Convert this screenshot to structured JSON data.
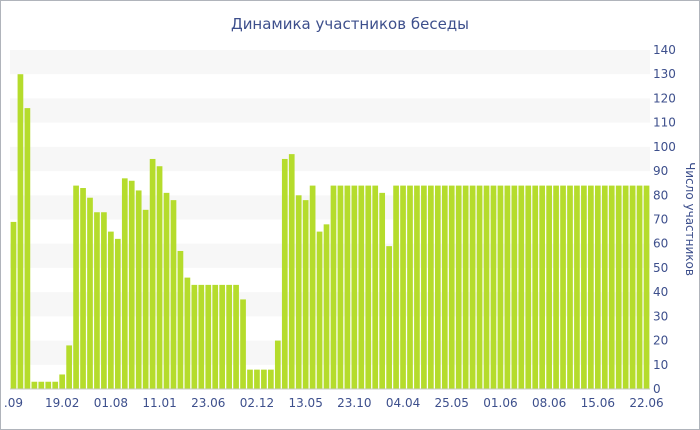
{
  "chart_data": {
    "type": "bar",
    "title": "Динамика участников беседы",
    "xlabel": "",
    "ylabel": "Число участников",
    "ylim": [
      0,
      140
    ],
    "y_ticks": [
      0,
      10,
      20,
      30,
      40,
      50,
      60,
      70,
      80,
      90,
      100,
      110,
      120,
      130,
      140
    ],
    "y_axis_side": "right",
    "grid": "horizontal alternating bands",
    "legend": "none",
    "bar_color": "#b5dc2c",
    "band_color": "#f7f7f7",
    "text_color": "#3d4f8c",
    "x_tick_labels": [
      {
        "label": ".09",
        "index": 0
      },
      {
        "label": "19.02",
        "index": 7
      },
      {
        "label": "01.08",
        "index": 14
      },
      {
        "label": "11.01",
        "index": 21
      },
      {
        "label": "23.06",
        "index": 28
      },
      {
        "label": "02.12",
        "index": 35
      },
      {
        "label": "13.05",
        "index": 42
      },
      {
        "label": "23.10",
        "index": 49
      },
      {
        "label": "04.04",
        "index": 56
      },
      {
        "label": "25.05",
        "index": 63
      },
      {
        "label": "01.06",
        "index": 70
      },
      {
        "label": "08.06",
        "index": 77
      },
      {
        "label": "15.06",
        "index": 84
      },
      {
        "label": "22.06",
        "index": 91
      }
    ],
    "values": [
      69,
      130,
      116,
      3,
      3,
      3,
      3,
      6,
      18,
      84,
      83,
      79,
      73,
      73,
      65,
      62,
      87,
      86,
      82,
      74,
      95,
      92,
      81,
      78,
      57,
      46,
      43,
      43,
      43,
      43,
      43,
      43,
      43,
      37,
      8,
      8,
      8,
      8,
      20,
      95,
      97,
      80,
      78,
      84,
      65,
      68,
      84,
      84,
      84,
      84,
      84,
      84,
      84,
      81,
      59,
      84,
      84,
      84,
      84,
      84,
      84,
      84,
      84,
      84,
      84,
      84,
      84,
      84,
      84,
      84,
      84,
      84,
      84,
      84,
      84,
      84,
      84,
      84,
      84,
      84,
      84,
      84,
      84,
      84,
      84,
      84,
      84,
      84,
      84,
      84,
      84,
      84
    ]
  }
}
